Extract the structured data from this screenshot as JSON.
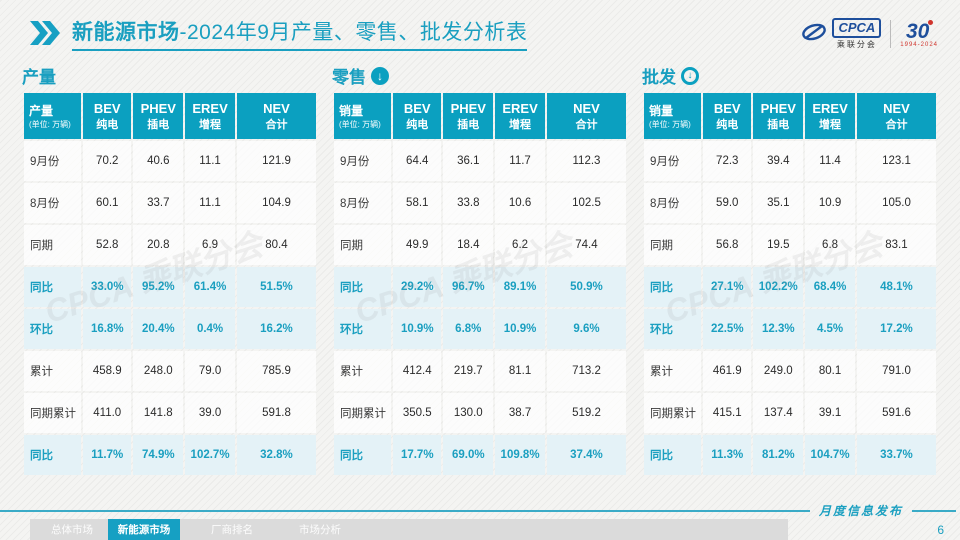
{
  "watermark": "CPCA 乘联分会",
  "icons": {
    "down_arrow": "↓"
  },
  "colors": {
    "accent": "#0ba0c0",
    "accent_dark": "#1a9fc0",
    "highlight_bg": "#e4f2f7",
    "logo_blue": "#1e4f9c",
    "logo_red": "#d0342c"
  },
  "header": {
    "title_bold": "新能源市场",
    "title_rest": "-2024年9月产量、零售、批发分析表",
    "logos": {
      "cpca": "CPCA",
      "cpca_sub": "乘联分会",
      "anniv": "30",
      "anniv_sub": "1994-2024"
    }
  },
  "tables": [
    {
      "title": "产量",
      "arrow": "",
      "corner": {
        "label": "产量",
        "unit": "(单位: 万辆)"
      },
      "columns": [
        {
          "en": "BEV",
          "cn": "纯电"
        },
        {
          "en": "PHEV",
          "cn": "插电"
        },
        {
          "en": "EREV",
          "cn": "增程"
        },
        {
          "en": "NEV",
          "cn": "合计"
        }
      ],
      "rows": [
        {
          "label": "9月份",
          "values": [
            "70.2",
            "40.6",
            "11.1",
            "121.9"
          ],
          "hl": false
        },
        {
          "label": "8月份",
          "values": [
            "60.1",
            "33.7",
            "11.1",
            "104.9"
          ],
          "hl": false
        },
        {
          "label": "同期",
          "values": [
            "52.8",
            "20.8",
            "6.9",
            "80.4"
          ],
          "hl": false
        },
        {
          "label": "同比",
          "values": [
            "33.0%",
            "95.2%",
            "61.4%",
            "51.5%"
          ],
          "hl": true
        },
        {
          "label": "环比",
          "values": [
            "16.8%",
            "20.4%",
            "0.4%",
            "16.2%"
          ],
          "hl": true
        },
        {
          "label": "累计",
          "values": [
            "458.9",
            "248.0",
            "79.0",
            "785.9"
          ],
          "hl": false
        },
        {
          "label": "同期累计",
          "values": [
            "411.0",
            "141.8",
            "39.0",
            "591.8"
          ],
          "hl": false
        },
        {
          "label": "同比",
          "values": [
            "11.7%",
            "74.9%",
            "102.7%",
            "32.8%"
          ],
          "hl": true
        }
      ]
    },
    {
      "title": "零售",
      "arrow": "solid",
      "corner": {
        "label": "销量",
        "unit": "(单位: 万辆)"
      },
      "columns": [
        {
          "en": "BEV",
          "cn": "纯电"
        },
        {
          "en": "PHEV",
          "cn": "插电"
        },
        {
          "en": "EREV",
          "cn": "增程"
        },
        {
          "en": "NEV",
          "cn": "合计"
        }
      ],
      "rows": [
        {
          "label": "9月份",
          "values": [
            "64.4",
            "36.1",
            "11.7",
            "112.3"
          ],
          "hl": false
        },
        {
          "label": "8月份",
          "values": [
            "58.1",
            "33.8",
            "10.6",
            "102.5"
          ],
          "hl": false
        },
        {
          "label": "同期",
          "values": [
            "49.9",
            "18.4",
            "6.2",
            "74.4"
          ],
          "hl": false
        },
        {
          "label": "同比",
          "values": [
            "29.2%",
            "96.7%",
            "89.1%",
            "50.9%"
          ],
          "hl": true
        },
        {
          "label": "环比",
          "values": [
            "10.9%",
            "6.8%",
            "10.9%",
            "9.6%"
          ],
          "hl": true
        },
        {
          "label": "累计",
          "values": [
            "412.4",
            "219.7",
            "81.1",
            "713.2"
          ],
          "hl": false
        },
        {
          "label": "同期累计",
          "values": [
            "350.5",
            "130.0",
            "38.7",
            "519.2"
          ],
          "hl": false
        },
        {
          "label": "同比",
          "values": [
            "17.7%",
            "69.0%",
            "109.8%",
            "37.4%"
          ],
          "hl": true
        }
      ]
    },
    {
      "title": "批发",
      "arrow": "ring",
      "corner": {
        "label": "销量",
        "unit": "(单位: 万辆)"
      },
      "columns": [
        {
          "en": "BEV",
          "cn": "纯电"
        },
        {
          "en": "PHEV",
          "cn": "插电"
        },
        {
          "en": "EREV",
          "cn": "增程"
        },
        {
          "en": "NEV",
          "cn": "合计"
        }
      ],
      "rows": [
        {
          "label": "9月份",
          "values": [
            "72.3",
            "39.4",
            "11.4",
            "123.1"
          ],
          "hl": false
        },
        {
          "label": "8月份",
          "values": [
            "59.0",
            "35.1",
            "10.9",
            "105.0"
          ],
          "hl": false
        },
        {
          "label": "同期",
          "values": [
            "56.8",
            "19.5",
            "6.8",
            "83.1"
          ],
          "hl": false
        },
        {
          "label": "同比",
          "values": [
            "27.1%",
            "102.2%",
            "68.4%",
            "48.1%"
          ],
          "hl": true
        },
        {
          "label": "环比",
          "values": [
            "22.5%",
            "12.3%",
            "4.5%",
            "17.2%"
          ],
          "hl": true
        },
        {
          "label": "累计",
          "values": [
            "461.9",
            "249.0",
            "80.1",
            "791.0"
          ],
          "hl": false
        },
        {
          "label": "同期累计",
          "values": [
            "415.1",
            "137.4",
            "39.1",
            "591.6"
          ],
          "hl": false
        },
        {
          "label": "同比",
          "values": [
            "11.3%",
            "81.2%",
            "104.7%",
            "33.7%"
          ],
          "hl": true
        }
      ]
    }
  ],
  "footer": {
    "tabs": [
      {
        "label": "总体市场",
        "active": false
      },
      {
        "label": "新能源市场",
        "active": true
      },
      {
        "label": "厂商排名",
        "active": false
      },
      {
        "label": "市场分析",
        "active": false
      }
    ],
    "release_label": "月度信息发布",
    "page_number": "6"
  }
}
